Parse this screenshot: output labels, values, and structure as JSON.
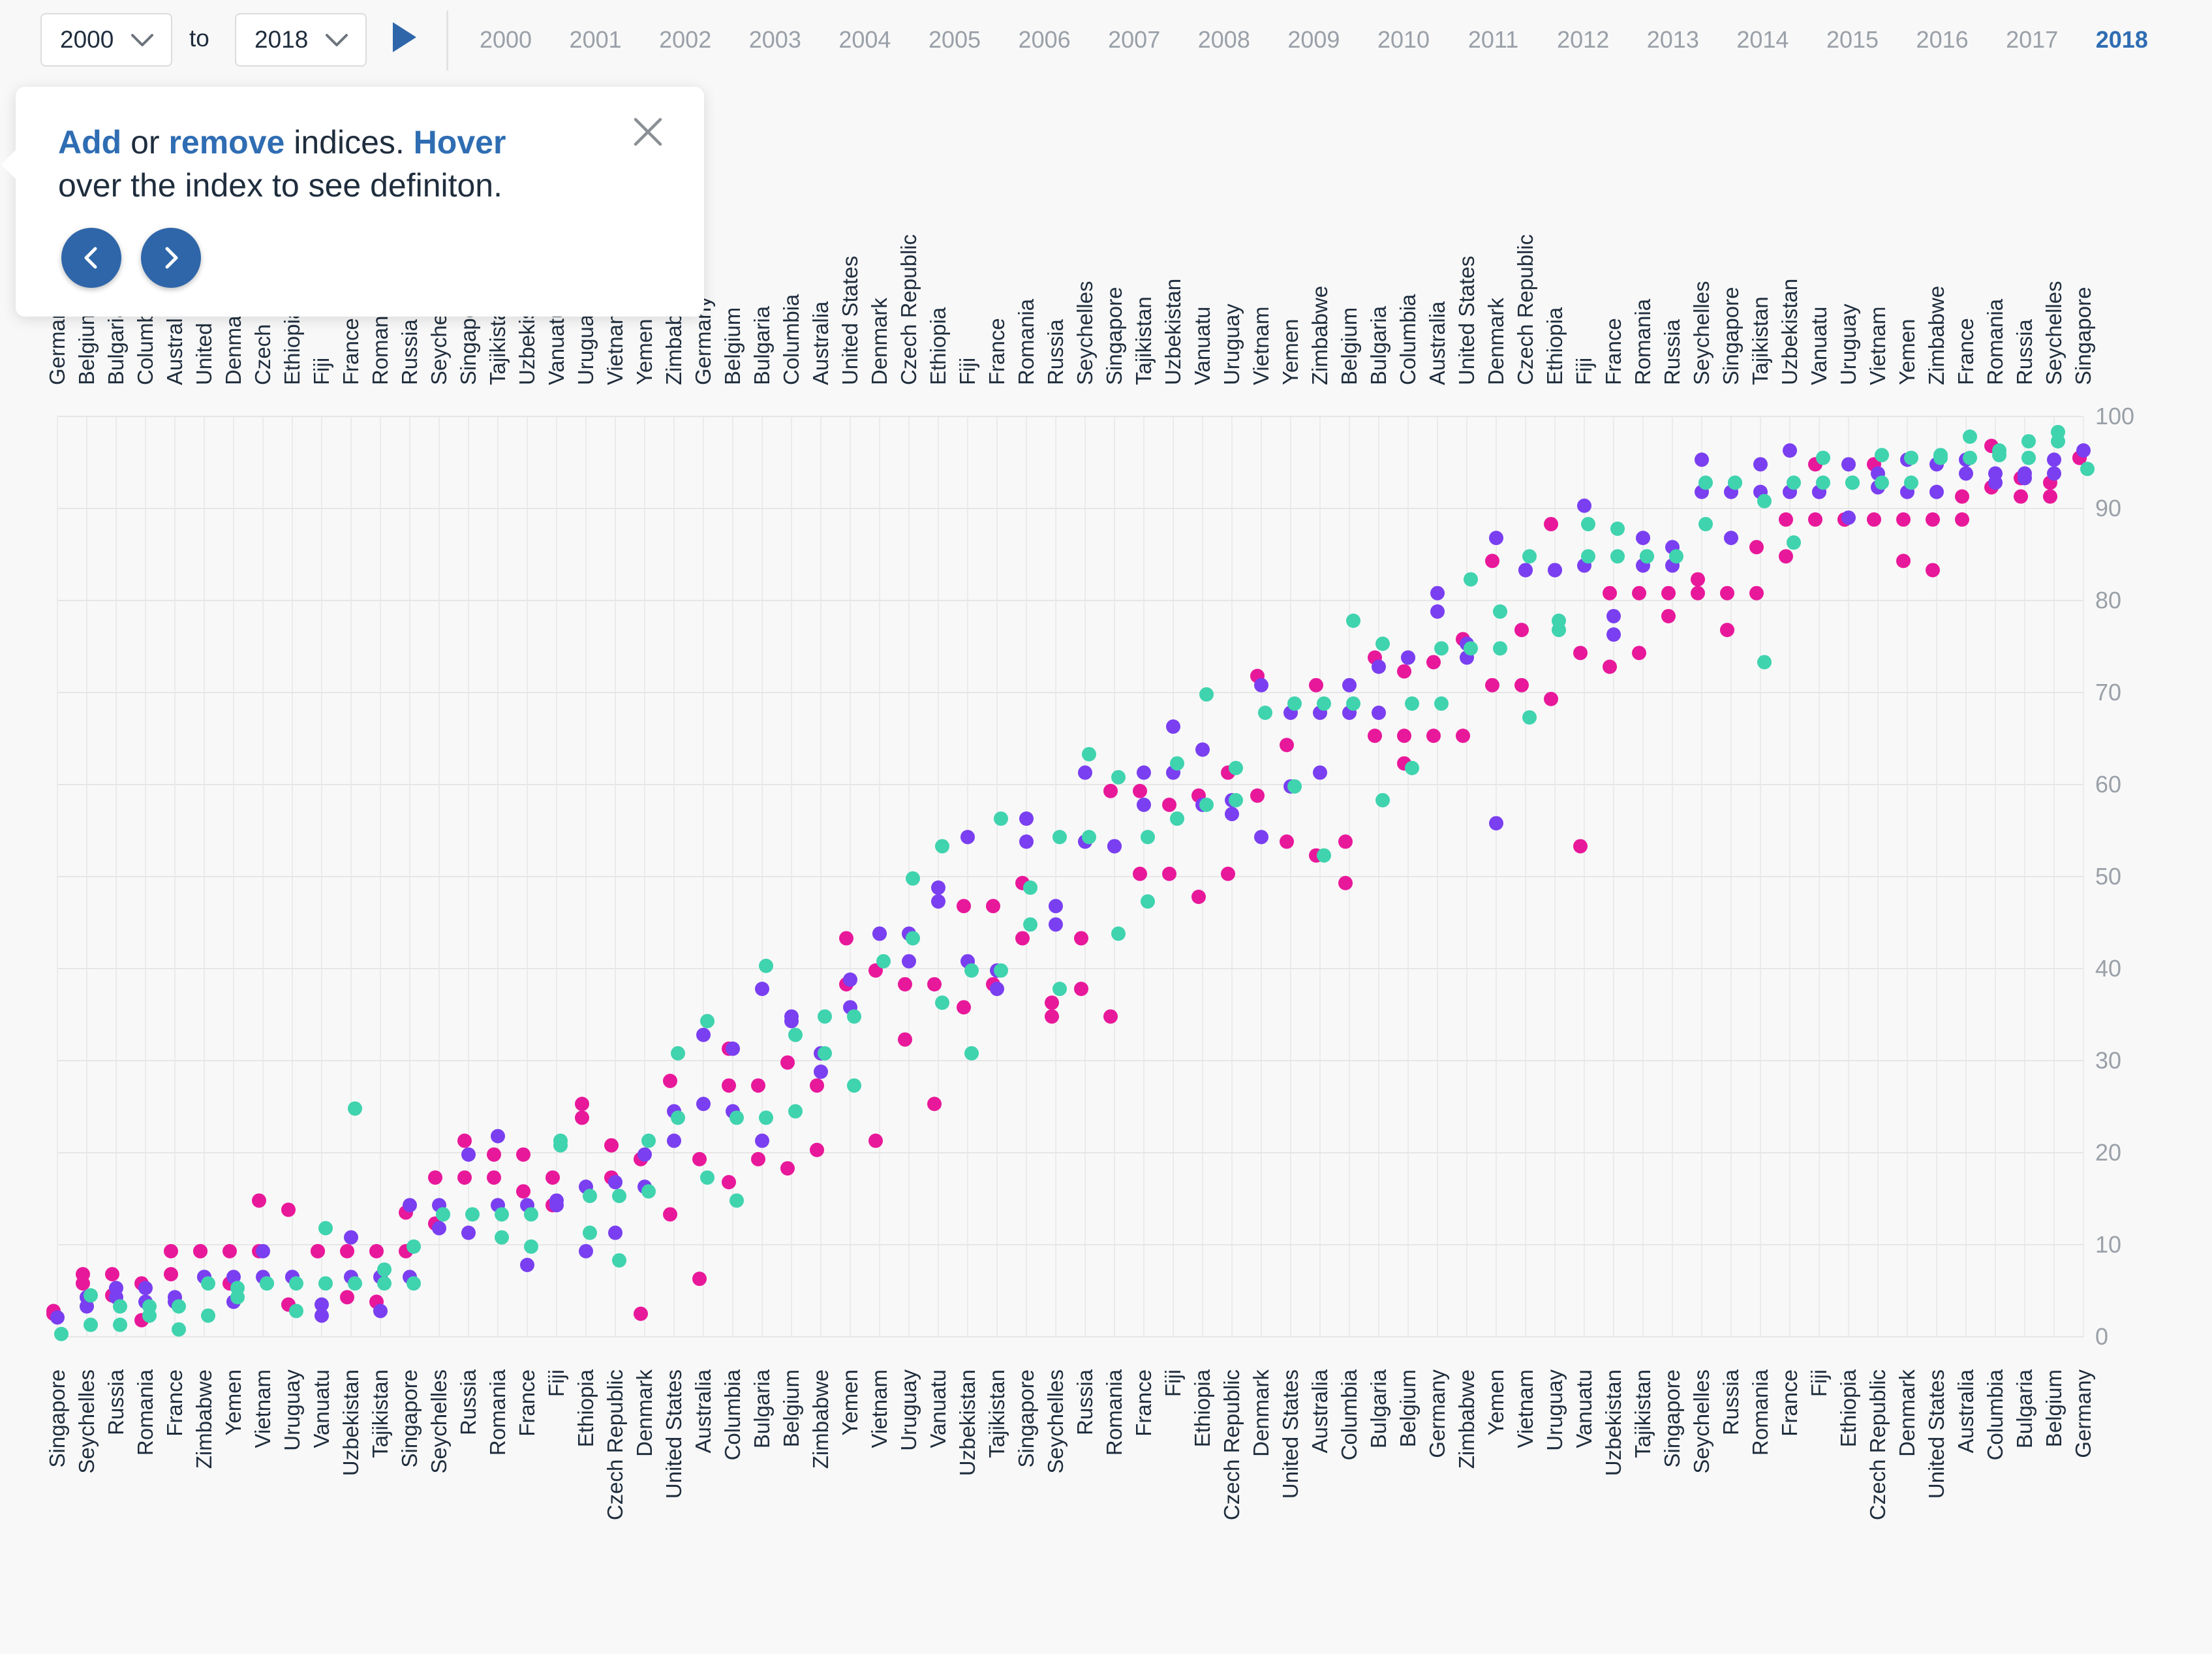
{
  "controls": {
    "from_year": "2000",
    "to_label": "to",
    "to_year": "2018",
    "years": [
      "2000",
      "2001",
      "2002",
      "2003",
      "2004",
      "2005",
      "2006",
      "2007",
      "2008",
      "2009",
      "2010",
      "2011",
      "2012",
      "2013",
      "2014",
      "2015",
      "2016",
      "2017",
      "2018"
    ],
    "active_year": "2018",
    "accent_color": "#2f6db3"
  },
  "tooltip": {
    "word_add": "Add",
    "word_or": " or ",
    "word_remove": "remove",
    "word_indices": " indices. ",
    "word_hover": "Hover",
    "line2": "over the index to see definiton.",
    "close_icon": "close-icon",
    "prev_icon": "chevron-left-icon",
    "next_icon": "chevron-right-icon"
  },
  "chart_data": {
    "type": "scatter",
    "ylim": [
      0,
      100
    ],
    "yticks": [
      0,
      10,
      20,
      30,
      40,
      50,
      60,
      70,
      80,
      90,
      100
    ],
    "grid": true,
    "colors": [
      "#e8189a",
      "#7a3ff0",
      "#3fd3ae"
    ],
    "top_labels": [
      "Germany",
      "Belgium",
      "Bulgaria",
      "Columbia",
      "Australia",
      "United States",
      "Denmark",
      "Czech Republic",
      "Ethiopia",
      "Fiji",
      "France",
      "Romania",
      "Russia",
      "Seychelles",
      "Singapore",
      "Tajikistan",
      "Uzbekistan",
      "Vanuatu",
      "Uruguay",
      "Vietnam",
      "Yemen",
      "Zimbabwe",
      "Germany",
      "Belgium",
      "Bulgaria",
      "Columbia",
      "Australia",
      "United States",
      "Denmark",
      "Czech Republic",
      "Ethiopia",
      "Fiji",
      "France",
      "Romania",
      "Russia",
      "Seychelles",
      "Singapore",
      "Tajikistan",
      "Uzbekistan",
      "Vanuatu",
      "Uruguay",
      "Vietnam",
      "Yemen",
      "Zimbabwe",
      "Belgium",
      "Bulgaria",
      "Columbia",
      "Australia",
      "United States",
      "Denmark",
      "Czech Republic",
      "Ethiopia",
      "Fiji",
      "France",
      "Romania",
      "Russia",
      "Seychelles",
      "Singapore",
      "Tajikistan",
      "Uzbekistan",
      "Vanuatu",
      "Uruguay",
      "Vietnam",
      "Yemen",
      "Zimbabwe",
      "France",
      "Romania",
      "Russia",
      "Seychelles",
      "Singapore"
    ],
    "bottom_labels": [
      "Singapore",
      "Seychelles",
      "Russia",
      "Romania",
      "France",
      "Zimbabwe",
      "Yemen",
      "Vietnam",
      "Uruguay",
      "Vanuatu",
      "Uzbekistan",
      "Tajikistan",
      "Singapore",
      "Seychelles",
      "Russia",
      "Romania",
      "France",
      "Fiji",
      "Ethiopia",
      "Czech Republic",
      "Denmark",
      "United States",
      "Australia",
      "Columbia",
      "Bulgaria",
      "Belgium",
      "Zimbabwe",
      "Yemen",
      "Vietnam",
      "Uruguay",
      "Vanuatu",
      "Uzbekistan",
      "Tajikistan",
      "Singapore",
      "Seychelles",
      "Russia",
      "Romania",
      "France",
      "Fiji",
      "Ethiopia",
      "Czech Republic",
      "Denmark",
      "United States",
      "Australia",
      "Columbia",
      "Bulgaria",
      "Belgium",
      "Germany",
      "Zimbabwe",
      "Yemen",
      "Vietnam",
      "Uruguay",
      "Vanuatu",
      "Uzbekistan",
      "Tajikistan",
      "Singapore",
      "Seychelles",
      "Russia",
      "Romania",
      "France",
      "Fiji",
      "Ethiopia",
      "Czech Republic",
      "Denmark",
      "United States",
      "Australia",
      "Columbia",
      "Bulgaria",
      "Belgium",
      "Germany"
    ],
    "series": [
      {
        "values": [
          2.5,
          2.8,
          5.8,
          6.8,
          4.5,
          6.8,
          1.8,
          5.8,
          6.8,
          9.3,
          9.3,
          9.3,
          9.3,
          5.8,
          14.8,
          9.3,
          13.8,
          3.5,
          9.3,
          9.3,
          4.3,
          9.3,
          3.8,
          9.3,
          9.3,
          13.5,
          12.3,
          17.3,
          21.3,
          17.3,
          19.8,
          17.3,
          15.8,
          19.8,
          14.3,
          17.3,
          23.8,
          25.3,
          17.3,
          20.8,
          2.5,
          19.3,
          13.3,
          27.8,
          6.3,
          19.3,
          27.3,
          31.3,
          16.8,
          19.3,
          27.3,
          29.8,
          18.3,
          27.3,
          20.3,
          43.3,
          38.3,
          39.8,
          21.3,
          38.3,
          32.3,
          38.3,
          25.3,
          46.8,
          35.8,
          38.3,
          46.8,
          49.3,
          43.3,
          36.3,
          34.8,
          43.3,
          37.8,
          34.8,
          59.3,
          50.3,
          59.3,
          57.8,
          50.3,
          47.8,
          58.8,
          61.3,
          50.3,
          71.8,
          58.8,
          64.3,
          53.8,
          70.8,
          52.3,
          53.8,
          49.3,
          65.3,
          73.8,
          72.3,
          65.3,
          62.3,
          65.3,
          73.3,
          75.8,
          65.3,
          84.3,
          70.8,
          76.8,
          70.8,
          88.3,
          69.3,
          53.3,
          74.3,
          80.8,
          72.8,
          74.3,
          80.8,
          78.3,
          80.8,
          82.3,
          80.8,
          80.8,
          76.8,
          80.8,
          85.8,
          84.8,
          88.8,
          88.8,
          94.8,
          88.8,
          88.8,
          88.8,
          94.8,
          84.3,
          88.8,
          83.3,
          88.8,
          88.8,
          91.3,
          92.3,
          96.8,
          91.3,
          93.3,
          91.3,
          92.8,
          95.5,
          95.5
        ]
      },
      {
        "values": [
          2.1,
          4.3,
          3.3,
          5.3,
          4.3,
          3.8,
          5.3,
          4.3,
          3.8,
          6.5,
          6.5,
          3.8,
          6.5,
          9.3,
          6.5,
          6.5,
          6.5,
          2.3,
          3.5,
          6.5,
          10.8,
          6.5,
          2.8,
          6.5,
          14.3,
          11.8,
          14.3,
          11.3,
          19.8,
          21.8,
          14.3,
          7.8,
          14.3,
          14.8,
          14.3,
          16.3,
          9.3,
          11.3,
          16.8,
          16.3,
          19.8,
          24.5,
          21.3,
          25.3,
          32.8,
          31.3,
          24.5,
          37.8,
          21.3,
          34.3,
          34.8,
          28.8,
          30.8,
          35.8,
          38.8,
          43.8,
          43.8,
          40.8,
          43.8,
          48.8,
          47.3,
          40.8,
          54.3,
          37.8,
          39.8,
          53.8,
          56.3,
          46.8,
          44.8,
          53.8,
          61.3,
          53.3,
          53.3,
          57.8,
          61.3,
          61.3,
          66.3,
          63.8,
          57.8,
          58.3,
          56.8,
          54.3,
          70.8,
          67.8,
          59.8,
          61.3,
          67.8,
          70.8,
          67.8,
          67.8,
          72.8,
          73.8,
          73.8,
          78.8,
          80.8,
          75.3,
          73.8,
          55.8,
          86.8,
          83.3,
          83.3,
          83.3,
          83.3,
          90.3,
          83.8,
          76.3,
          78.3,
          86.8,
          83.8,
          85.8,
          83.8,
          91.8,
          95.3,
          91.8,
          86.8,
          91.8,
          94.8,
          96.3,
          91.8,
          91.8,
          91.8,
          89.0,
          94.8,
          93.8,
          92.3,
          91.8,
          95.3,
          91.8,
          94.8,
          93.8,
          95.3,
          92.8,
          93.8,
          93.8,
          93.3,
          95.3,
          93.8,
          96.3
        ]
      },
      {
        "values": [
          0.3,
          4.5,
          1.3,
          3.3,
          1.3,
          2.3,
          3.3,
          0.8,
          3.3,
          5.8,
          2.3,
          4.3,
          5.3,
          5.8,
          5.8,
          2.8,
          5.8,
          11.8,
          5.8,
          24.8,
          5.8,
          7.3,
          5.8,
          5.8,
          9.8,
          13.3,
          13.3,
          13.3,
          10.8,
          13.3,
          9.8,
          13.3,
          20.8,
          21.3,
          15.3,
          11.3,
          15.3,
          8.3,
          15.8,
          21.3,
          23.8,
          30.8,
          34.3,
          17.3,
          23.8,
          14.8,
          23.8,
          40.3,
          32.8,
          24.5,
          34.8,
          30.8,
          27.3,
          34.8,
          40.8,
          43.3,
          49.8,
          53.3,
          36.3,
          30.8,
          39.8,
          39.8,
          56.3,
          48.8,
          44.8,
          54.3,
          37.8,
          63.3,
          54.3,
          60.8,
          43.8,
          47.3,
          54.3,
          62.3,
          56.3,
          69.8,
          57.8,
          61.8,
          58.3,
          67.8,
          59.8,
          68.8,
          52.3,
          68.8,
          77.8,
          68.8,
          75.3,
          58.3,
          61.8,
          68.8,
          68.8,
          74.8,
          82.3,
          74.8,
          78.8,
          74.8,
          67.3,
          84.8,
          77.8,
          76.8,
          84.8,
          88.3,
          84.8,
          87.8,
          84.8,
          84.8,
          84.8,
          88.3,
          92.8,
          92.8,
          92.8,
          90.8,
          73.3,
          92.8,
          86.3,
          92.8,
          95.5,
          92.8,
          92.8,
          95.8,
          92.8,
          95.5,
          92.8,
          95.8,
          95.5,
          97.8,
          95.5,
          96.3,
          95.8,
          97.3,
          95.5,
          97.3,
          98.3,
          94.3
        ]
      }
    ]
  }
}
